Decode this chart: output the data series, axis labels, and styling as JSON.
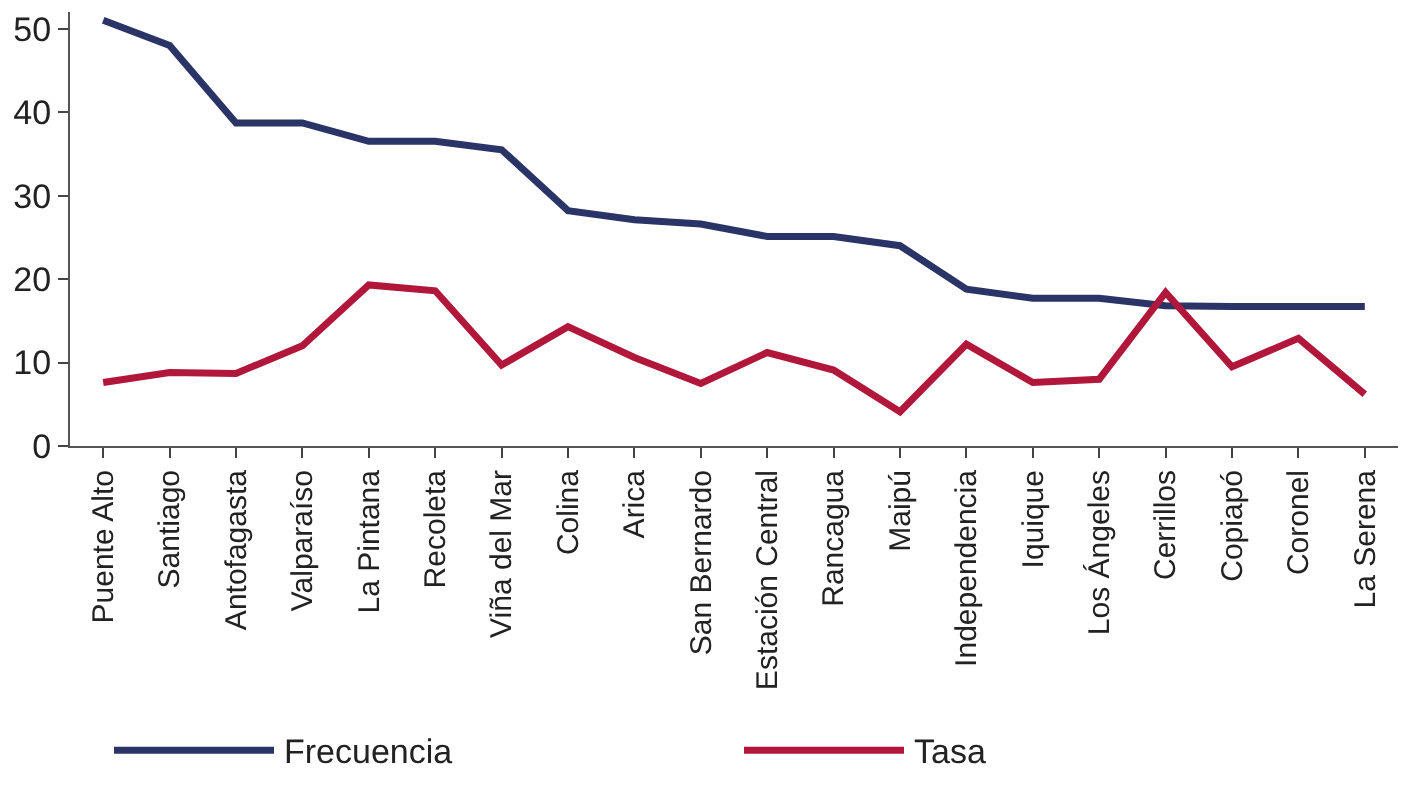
{
  "chart_data": {
    "type": "line",
    "categories": [
      "Puente Alto",
      "Santiago",
      "Antofagasta",
      "Valparaíso",
      "La Pintana",
      "Recoleta",
      "Viña del Mar",
      "Colina",
      "Arica",
      "San Bernardo",
      "Estación Central",
      "Rancagua",
      "Maipú",
      "Independencia",
      "Iquique",
      "Los Ángeles",
      "Cerrillos",
      "Copiapó",
      "Coronel",
      "La Serena"
    ],
    "series": [
      {
        "name": "Frecuencia",
        "color": "#2b3467",
        "values": [
          51,
          48,
          38.7,
          38.7,
          36.5,
          36.5,
          35.5,
          28.2,
          27.1,
          26.6,
          25.1,
          25.1,
          24,
          18.8,
          17.7,
          17.7,
          16.8,
          16.7,
          16.7,
          16.7
        ]
      },
      {
        "name": "Tasa",
        "color": "#b0173a",
        "values": [
          7.6,
          8.8,
          8.7,
          12,
          19.3,
          18.6,
          9.7,
          14.3,
          10.6,
          7.5,
          11.2,
          9.1,
          4.1,
          12.2,
          7.6,
          8,
          18.4,
          9.5,
          12.9,
          6.2
        ]
      }
    ],
    "ylim": [
      0,
      52
    ],
    "yticks": [
      0,
      10,
      20,
      30,
      40,
      50
    ],
    "legend": "bottom",
    "marker": "none",
    "line_style": "solid"
  }
}
